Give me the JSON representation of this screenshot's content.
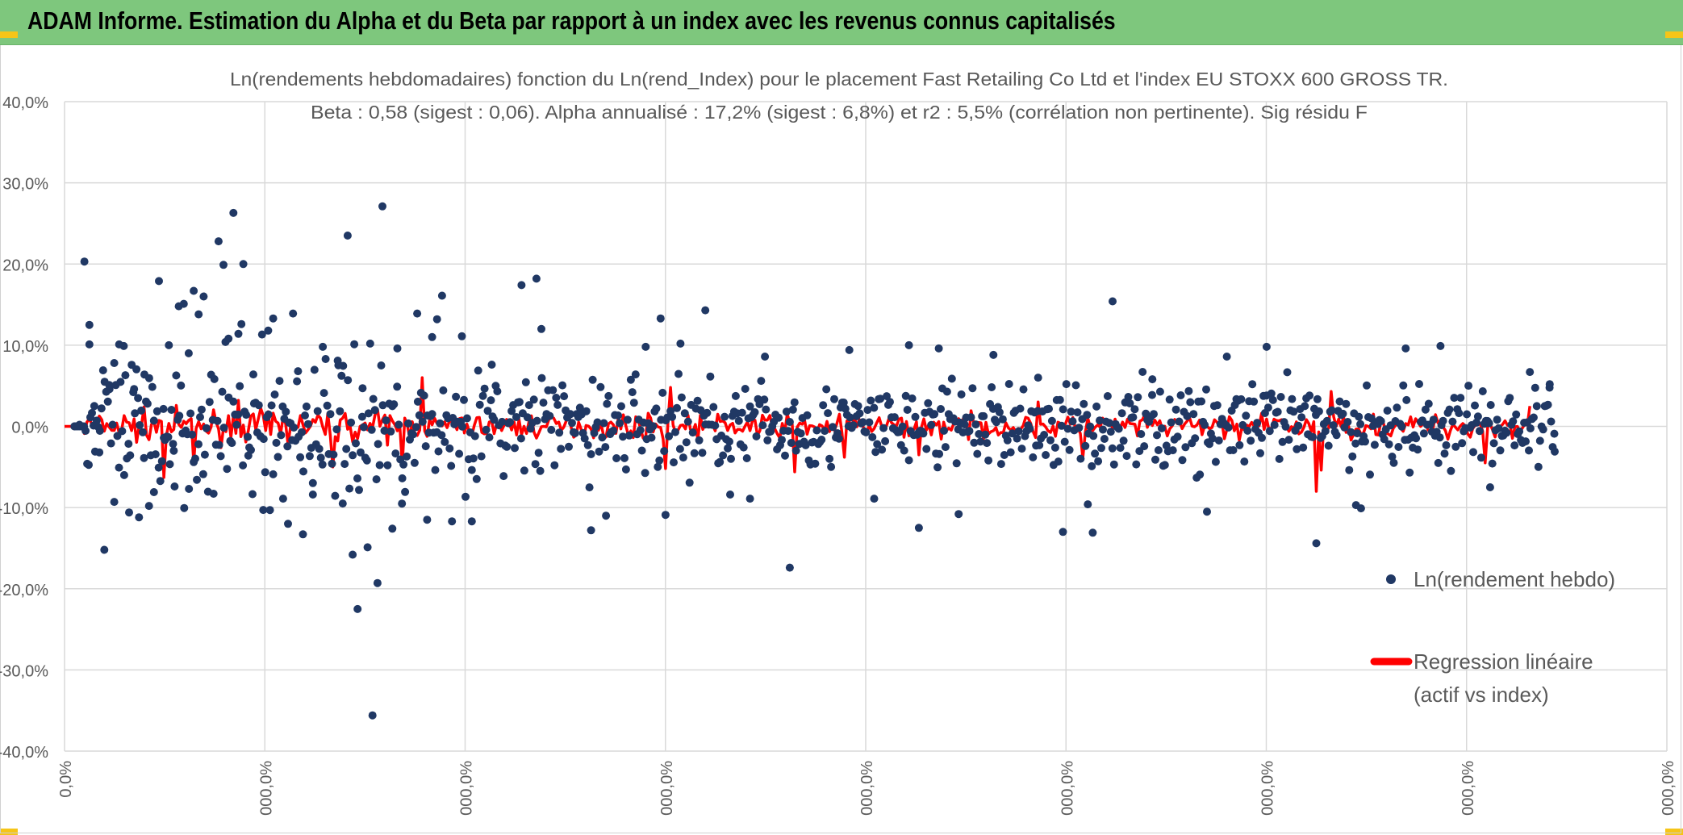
{
  "header": {
    "title": "ADAM Informe. Estimation du Alpha et du Beta par rapport à un index avec les revenus connus capitalisés"
  },
  "colors": {
    "banner": "#7ec77d",
    "scatter": "#203864",
    "regression": "#ff0000",
    "grid": "#d9d9d9",
    "accent": "#f5c518"
  },
  "chart_data": {
    "type": "scatter",
    "title": "Ln(rendements hebdomadaires) fonction du Ln(rend_Index) pour le placement Fast Retailing Co Ltd et l'index EU STOXX 600 GROSS TR.",
    "subtitle": "Beta : 0,58 (sigest : 0,06). Alpha annualisé : 17,2% (sigest : 6,8%) et r2 : 5,5% (corrélation non pertinente). Sig résidu F",
    "xlabel": "",
    "ylabel": "",
    "ylim": [
      -40,
      40
    ],
    "y_ticks": [
      "40,0%",
      "30,0%",
      "20,0%",
      "10,0%",
      "0,0%",
      "-10,0%",
      "-20,0%",
      "-30,0%",
      "-40,0%"
    ],
    "x_ticks": [
      "0,0%",
      "000,0%",
      "000,0%",
      "000,0%",
      "000,0%",
      "000,0%",
      "000,0%",
      "000,0%",
      "000,0%"
    ],
    "grid": true,
    "legend_position": "right",
    "series": [
      {
        "name": "Ln(rendement hebdo)",
        "marker": "circle",
        "points": [
          [
            2,
            0
          ],
          [
            3,
            0.2
          ],
          [
            4,
            20.3
          ],
          [
            5,
            12.5
          ],
          [
            5,
            10.1
          ],
          [
            6,
            2.5
          ],
          [
            7,
            -3.2
          ],
          [
            8,
            -15.2
          ],
          [
            9,
            5.1
          ],
          [
            10,
            -9.3
          ],
          [
            11,
            10.1
          ],
          [
            12,
            -6.0
          ],
          [
            13,
            -10.6
          ],
          [
            14,
            4.6
          ],
          [
            15,
            -11.2
          ],
          [
            16,
            -3.9
          ],
          [
            17,
            -9.8
          ],
          [
            18,
            -8.1
          ],
          [
            19,
            17.9
          ],
          [
            20,
            -1.4
          ],
          [
            21,
            10.0
          ],
          [
            22,
            -3.0
          ],
          [
            23,
            14.8
          ],
          [
            24,
            15.1
          ],
          [
            25,
            9.0
          ],
          [
            26,
            16.7
          ],
          [
            27,
            13.8
          ],
          [
            28,
            16.0
          ],
          [
            30,
            -8.3
          ],
          [
            31,
            22.8
          ],
          [
            32,
            19.9
          ],
          [
            33,
            10.8
          ],
          [
            34,
            26.3
          ],
          [
            35,
            11.4
          ],
          [
            36,
            20.0
          ],
          [
            37,
            -3.6
          ],
          [
            38,
            6.4
          ],
          [
            40,
            -10.3
          ],
          [
            41,
            11.8
          ],
          [
            42,
            13.3
          ],
          [
            44,
            -8.9
          ],
          [
            45,
            -12.0
          ],
          [
            46,
            13.9
          ],
          [
            47,
            6.8
          ],
          [
            48,
            -13.3
          ],
          [
            50,
            -8.4
          ],
          [
            52,
            9.8
          ],
          [
            55,
            8.1
          ],
          [
            56,
            -9.5
          ],
          [
            57,
            23.5
          ],
          [
            58,
            -15.8
          ],
          [
            59,
            -22.5
          ],
          [
            60,
            4.7
          ],
          [
            61,
            -14.9
          ],
          [
            62,
            -35.6
          ],
          [
            63,
            -19.3
          ],
          [
            64,
            27.1
          ],
          [
            66,
            -12.6
          ],
          [
            67,
            9.6
          ],
          [
            68,
            -6.4
          ],
          [
            71,
            13.9
          ],
          [
            73,
            -11.5
          ],
          [
            74,
            11.0
          ],
          [
            75,
            13.2
          ],
          [
            76,
            16.1
          ],
          [
            78,
            -11.7
          ],
          [
            80,
            11.1
          ],
          [
            82,
            -11.7
          ],
          [
            86,
            7.6
          ],
          [
            92,
            17.4
          ],
          [
            95,
            18.2
          ],
          [
            96,
            12.0
          ],
          [
            106,
            -12.8
          ],
          [
            109,
            -11.0
          ],
          [
            117,
            9.8
          ],
          [
            120,
            13.3
          ],
          [
            121,
            -10.9
          ],
          [
            124,
            10.2
          ],
          [
            129,
            14.3
          ],
          [
            134,
            -8.4
          ],
          [
            138,
            -8.9
          ],
          [
            141,
            8.6
          ],
          [
            146,
            -17.4
          ],
          [
            158,
            9.4
          ],
          [
            163,
            -8.9
          ],
          [
            170,
            10.0
          ],
          [
            172,
            -12.5
          ],
          [
            176,
            9.6
          ],
          [
            180,
            -10.8
          ],
          [
            187,
            8.8
          ],
          [
            196,
            6.0
          ],
          [
            201,
            -13.0
          ],
          [
            206,
            -9.6
          ],
          [
            207,
            -13.1
          ],
          [
            211,
            15.4
          ],
          [
            219,
            5.8
          ],
          [
            230,
            -10.5
          ],
          [
            234,
            8.6
          ],
          [
            242,
            9.8
          ],
          [
            252,
            -14.4
          ],
          [
            260,
            -9.7
          ],
          [
            261,
            -10.1
          ],
          [
            270,
            9.6
          ],
          [
            277,
            9.9
          ],
          [
            287,
            -7.5
          ],
          [
            295,
            6.7
          ],
          [
            299,
            5.2
          ],
          [
            300,
            -3.1
          ]
        ]
      },
      {
        "name": "Regression linéaire",
        "name_line2": "(actif vs index)",
        "type": "line",
        "description": "fitted values of regression, mostly between -3% and +3% with a few spikes"
      }
    ],
    "legend": [
      {
        "label": "Ln(rendement hebdo)"
      },
      {
        "label": "Regression linéaire",
        "label_line2": "(actif vs index)"
      }
    ]
  }
}
